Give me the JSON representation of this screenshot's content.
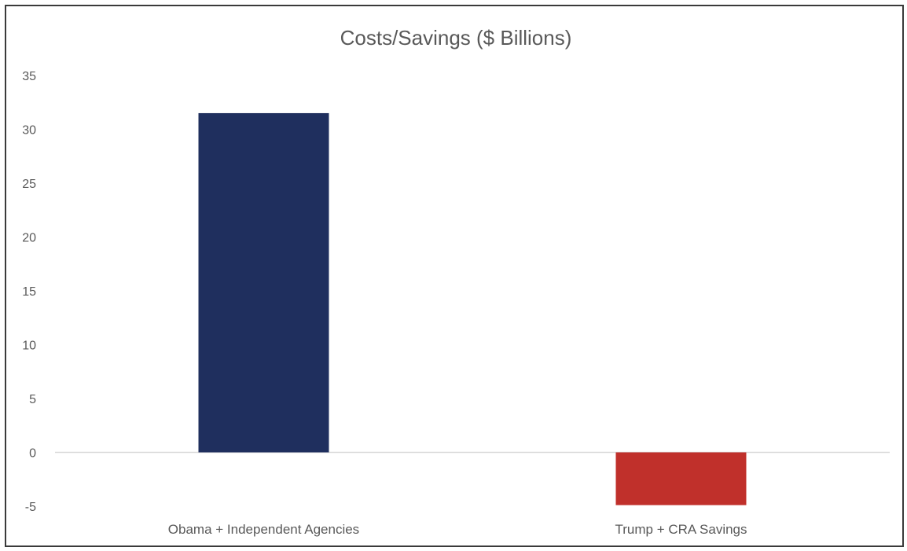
{
  "chart_data": {
    "type": "bar",
    "title": "Costs/Savings ($ Billions)",
    "xlabel": "",
    "ylabel": "",
    "categories": [
      "Obama + Independent Agencies",
      "Trump + CRA Savings"
    ],
    "values": [
      31.5,
      -4.9
    ],
    "bar_colors": [
      "#1f2f5e",
      "#c0302b"
    ],
    "ylim": [
      -5,
      35
    ],
    "yticks": [
      35,
      30,
      25,
      20,
      15,
      10,
      5,
      0,
      -5
    ],
    "grid": false,
    "legend": "none"
  }
}
